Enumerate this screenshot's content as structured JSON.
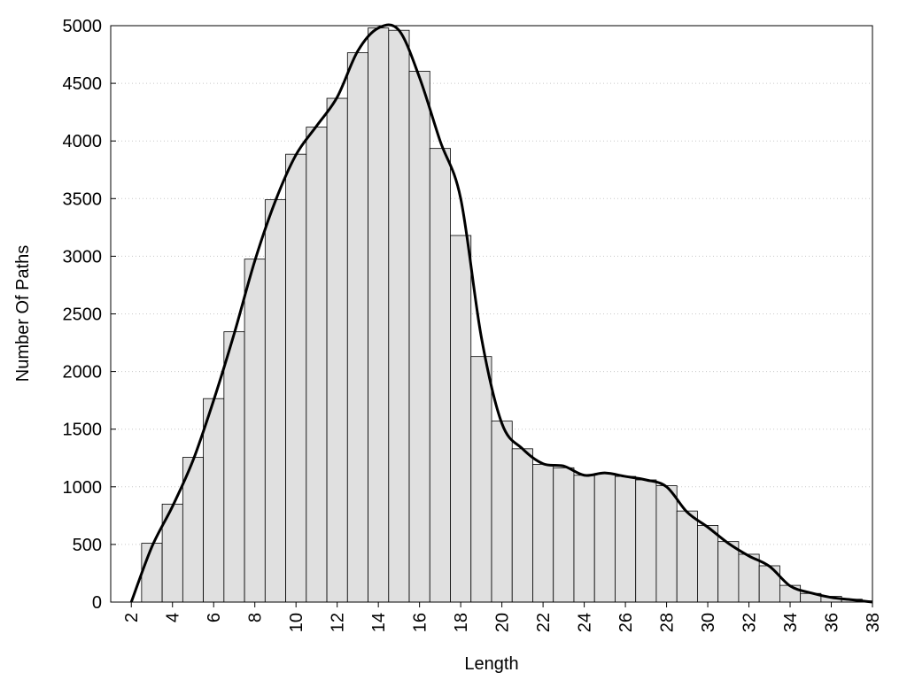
{
  "chart_data": {
    "type": "histogram",
    "x_label": "Length",
    "y_label": "Number Of Paths",
    "x": [
      3,
      4,
      5,
      6,
      7,
      8,
      9,
      10,
      11,
      12,
      13,
      14,
      15,
      16,
      17,
      18,
      19,
      20,
      21,
      22,
      23,
      24,
      25,
      26,
      27,
      28,
      29,
      30,
      31,
      32,
      33,
      34,
      35,
      36,
      37,
      38
    ],
    "values": [
      510,
      850,
      1255,
      1765,
      2345,
      2975,
      3490,
      3885,
      4120,
      4370,
      4765,
      4980,
      4960,
      4605,
      3935,
      3180,
      2130,
      1570,
      1330,
      1195,
      1165,
      1100,
      1115,
      1090,
      1060,
      1010,
      790,
      665,
      525,
      415,
      315,
      145,
      75,
      50,
      25,
      10
    ],
    "color": "#e0e0e0",
    "curve": {
      "color": "#000000",
      "x": [
        2,
        3,
        4,
        5,
        6,
        7,
        8,
        9,
        10,
        11,
        12,
        13,
        14,
        15,
        16,
        17,
        18,
        19,
        20,
        21,
        22,
        23,
        24,
        25,
        26,
        27,
        28,
        29,
        30,
        31,
        32,
        33,
        34,
        35,
        36,
        37,
        38
      ],
      "values": [
        0,
        480,
        830,
        1230,
        1750,
        2330,
        2960,
        3480,
        3880,
        4130,
        4380,
        4780,
        4980,
        4960,
        4550,
        4000,
        3500,
        2300,
        1550,
        1330,
        1200,
        1180,
        1100,
        1120,
        1090,
        1060,
        1000,
        780,
        650,
        510,
        400,
        310,
        140,
        80,
        40,
        20,
        0
      ]
    },
    "xlim": [
      1,
      38
    ],
    "ylim": [
      0,
      5000
    ],
    "xticks": [
      2,
      4,
      6,
      8,
      10,
      12,
      14,
      16,
      18,
      20,
      22,
      24,
      26,
      28,
      30,
      32,
      34,
      36,
      38
    ],
    "yticks": [
      0,
      500,
      1000,
      1500,
      2000,
      2500,
      3000,
      3500,
      4000,
      4500,
      5000
    ],
    "grid": true
  }
}
